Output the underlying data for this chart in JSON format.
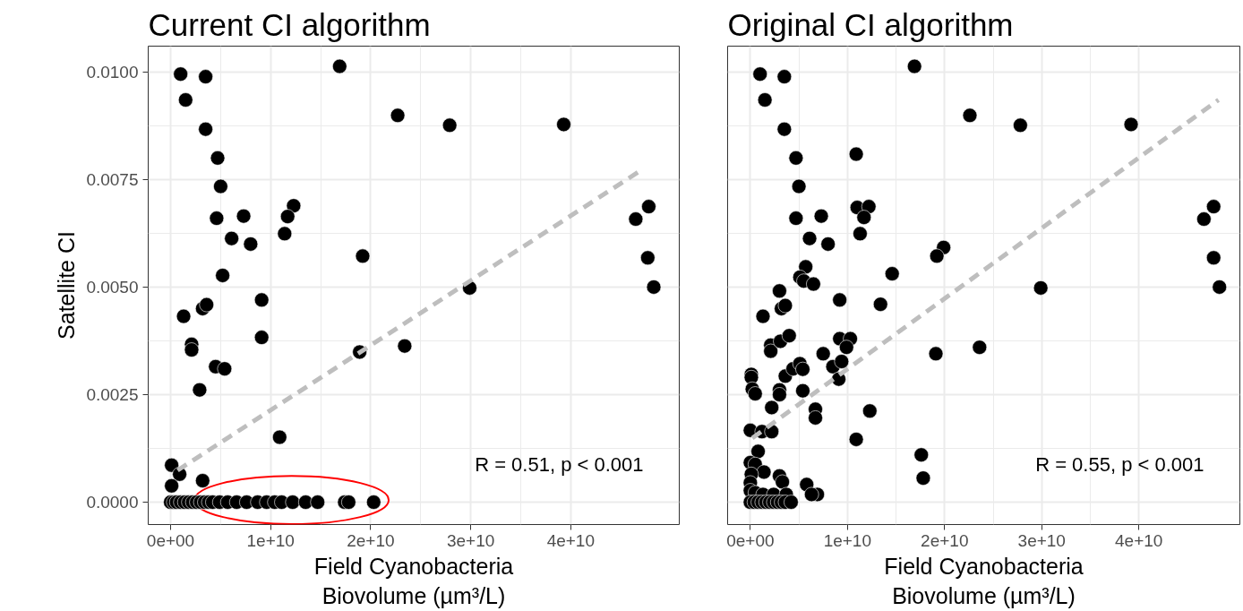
{
  "chart_data": [
    {
      "type": "scatter",
      "title": "Current CI algorithm",
      "xlabel": "Field Cyanobacteria\nBiovolume (µm³/L)",
      "ylabel": "Satellite CI",
      "xlim": [
        -2240000000.0,
        50850000000.0
      ],
      "ylim": [
        -0.00052,
        0.0106
      ],
      "xticks": [
        {
          "value": 0,
          "label": "0e+00"
        },
        {
          "value": 10000000000.0,
          "label": "1e+10"
        },
        {
          "value": 20000000000.0,
          "label": "2e+10"
        },
        {
          "value": 30000000000.0,
          "label": "3e+10"
        },
        {
          "value": 40000000000.0,
          "label": "4e+10"
        }
      ],
      "yticks": [
        {
          "value": 0,
          "label": "0.0000"
        },
        {
          "value": 0.0025,
          "label": "0.0025"
        },
        {
          "value": 0.005,
          "label": "0.0050"
        },
        {
          "value": 0.0075,
          "label": "0.0075"
        },
        {
          "value": 0.01,
          "label": "0.0100"
        }
      ],
      "grid": true,
      "marker": "circle",
      "annotations": [
        "R = 0.51, p < 0.001"
      ],
      "series": [
        {
          "color": "#000000",
          "x": [
            1000000000.0,
            3500000000.0,
            1500000000.0,
            3500000000.0,
            4700000000.0,
            5000000000.0,
            4600000000.0,
            7300000000.0,
            6100000000.0,
            8000000000.0,
            5200000000.0,
            12300000000.0,
            11700000000.0,
            11400000000.0,
            16900000000.0,
            22700000000.0,
            27900000000.0,
            39300000000.0,
            19200000000.0,
            29900000000.0,
            9100000000.0,
            9100000000.0,
            18900000000.0,
            23400000000.0,
            46500000000.0,
            47800000000.0,
            47700000000.0,
            48300000000.0,
            1300000000.0,
            2100000000.0,
            2100000000.0,
            3200000000.0,
            3600000000.0,
            4500000000.0,
            5400000000.0,
            2900000000.0,
            10900000000.0,
            100000000.0,
            900000000.0,
            100000000.0,
            3200000000.0,
            0,
            300000000.0,
            600000000.0,
            1000000000.0,
            1400000000.0,
            1800000000.0,
            2200000000.0,
            2600000000.0,
            3000000000.0,
            3400000000.0,
            3800000000.0,
            4200000000.0,
            4900000000.0,
            5700000000.0,
            6600000000.0,
            7600000000.0,
            8700000000.0,
            9600000000.0,
            10400000000.0,
            11100000000.0,
            12200000000.0,
            13500000000.0,
            14700000000.0,
            17400000000.0,
            17800000000.0,
            20300000000.0
          ],
          "values": [
            0.00995,
            0.00989,
            0.00935,
            0.00867,
            0.008,
            0.00734,
            0.0066,
            0.00665,
            0.00613,
            0.006,
            0.00527,
            0.00689,
            0.00664,
            0.00624,
            0.01013,
            0.00899,
            0.00876,
            0.00878,
            0.00572,
            0.00498,
            0.0047,
            0.00383,
            0.00349,
            0.00363,
            0.00658,
            0.00687,
            0.00568,
            0.005,
            0.00432,
            0.00367,
            0.00354,
            0.0045,
            0.00459,
            0.00315,
            0.0031,
            0.00261,
            0.00151,
            0.00086,
            0.00065,
            0.00038,
            0.0005,
            0,
            0,
            0,
            0,
            0,
            0,
            0,
            0,
            0,
            0,
            0,
            0,
            0,
            0,
            0,
            0,
            0,
            0,
            0,
            0,
            0,
            0,
            0,
            0,
            0,
            0
          ]
        },
        {
          "type": "line",
          "color": "#bebebe",
          "line_style": "dashed",
          "marker": "none",
          "x": [
            700000000.0,
            46800000000.0
          ],
          "values": [
            0.00074,
            0.00768
          ]
        }
      ]
    },
    {
      "type": "scatter",
      "title": "Original CI algorithm",
      "xlabel": "Field Cyanobacteria\nBiovolume (µm³/L)",
      "xlim": [
        -2340000000.0,
        50400000000.0
      ],
      "ylim": [
        -0.00052,
        0.0106
      ],
      "tick_labels": "x",
      "xticks": [
        {
          "value": 0,
          "label": "0e+00"
        },
        {
          "value": 10000000000.0,
          "label": "1e+10"
        },
        {
          "value": 20000000000.0,
          "label": "2e+10"
        },
        {
          "value": 30000000000.0,
          "label": "3e+10"
        },
        {
          "value": 40000000000.0,
          "label": "4e+10"
        }
      ],
      "yticks": [
        0,
        0.0025,
        0.005,
        0.0075,
        0.01
      ],
      "grid": true,
      "marker": "circle",
      "annotations": [
        "R = 0.55, p < 0.001"
      ],
      "series": [
        {
          "color": "#000000",
          "x": [
            1000000000.0,
            3500000000.0,
            1500000000.0,
            3500000000.0,
            4700000000.0,
            5000000000.0,
            10900000000.0,
            4700000000.0,
            7300000000.0,
            6100000000.0,
            8000000000.0,
            11000000000.0,
            12200000000.0,
            11700000000.0,
            11300000000.0,
            16900000000.0,
            22600000000.0,
            27800000000.0,
            39200000000.0,
            29900000000.0,
            46700000000.0,
            47700000000.0,
            47700000000.0,
            48300000000.0,
            19900000000.0,
            19200000000.0,
            14600000000.0,
            13400000000.0,
            9200000000.0,
            5700000000.0,
            5100000000.0,
            5500000000.0,
            6500000000.0,
            3000000000.0,
            3200000000.0,
            3600000000.0,
            1300000000.0,
            2100000000.0,
            2100000000.0,
            3100000000.0,
            4000000000.0,
            9200000000.0,
            10300000000.0,
            9900000000.0,
            7500000000.0,
            19100000000.0,
            23600000000.0,
            8500000000.0,
            9400000000.0,
            9100000000.0,
            3600000000.0,
            4400000000.0,
            5100000000.0,
            5400000000.0,
            100000000.0,
            100000000.0,
            200000000.0,
            500000000.0,
            3000000000.0,
            3000000000.0,
            5400000000.0,
            2200000000.0,
            6700000000.0,
            6700000000.0,
            12300000000.0,
            10900000000.0,
            0,
            1200000000.0,
            2200000000.0,
            800000000.0,
            17600000000.0,
            17800000000.0,
            0,
            500000000.0,
            1400000000.0,
            100000000.0,
            3000000000.0,
            3300000000.0,
            5800000000.0,
            6900000000.0,
            6300000000.0,
            0,
            0,
            500000000.0,
            1300000000.0,
            2400000000.0,
            3700000000.0,
            0,
            400000000.0,
            800000000.0,
            1200000000.0,
            1600000000.0,
            2000000000.0,
            2400000000.0,
            2800000000.0,
            3200000000.0,
            3600000000.0,
            4200000000.0
          ],
          "values": [
            0.00995,
            0.00989,
            0.00935,
            0.00867,
            0.008,
            0.00734,
            0.00809,
            0.0066,
            0.00665,
            0.00613,
            0.006,
            0.00685,
            0.00687,
            0.00662,
            0.00624,
            0.01013,
            0.00899,
            0.00876,
            0.00878,
            0.00498,
            0.00658,
            0.00687,
            0.00568,
            0.005,
            0.00592,
            0.00572,
            0.00531,
            0.0046,
            0.0047,
            0.00547,
            0.00523,
            0.00514,
            0.00507,
            0.00491,
            0.0045,
            0.00457,
            0.00432,
            0.00365,
            0.00351,
            0.00374,
            0.00387,
            0.0038,
            0.0038,
            0.0036,
            0.00345,
            0.00345,
            0.0036,
            0.00315,
            0.00327,
            0.00286,
            0.00293,
            0.0031,
            0.00322,
            0.00309,
            0.00297,
            0.0029,
            0.00263,
            0.00252,
            0.00261,
            0.0025,
            0.00259,
            0.0022,
            0.00216,
            0.00196,
            0.00212,
            0.00146,
            0.00167,
            0.00164,
            0.00164,
            0.00118,
            0.0011,
            0.00056,
            0.00092,
            0.00088,
            0.0007,
            0.00065,
            0.00061,
            0.00047,
            0.00041,
            0.00018,
            0.00018,
            0.00045,
            0.00027,
            0.00022,
            0.00018,
            0.00018,
            0.00018,
            0,
            0,
            0,
            0,
            0,
            0,
            0,
            0,
            0,
            0,
            0
          ]
        },
        {
          "type": "line",
          "color": "#bebebe",
          "line_style": "dashed",
          "marker": "none",
          "x": [
            200000000.0,
            48200000000.0
          ],
          "values": [
            0.00149,
            0.00935
          ]
        }
      ]
    }
  ]
}
